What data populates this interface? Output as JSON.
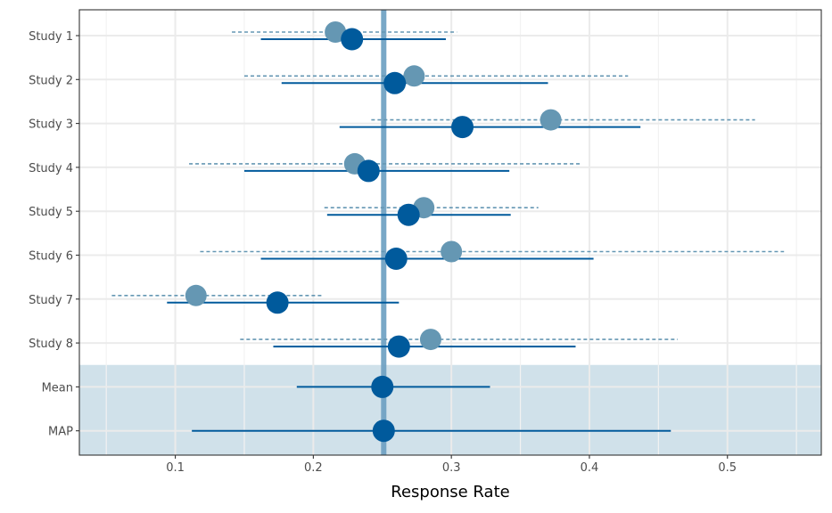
{
  "chart_data": {
    "type": "forest",
    "xlabel": "Response Rate",
    "ylabel": "",
    "xlim": [
      0.0305,
      0.568
    ],
    "xticks": [
      0.1,
      0.2,
      0.3,
      0.4,
      0.5
    ],
    "xtick_labels": [
      "0.1",
      "0.2",
      "0.3",
      "0.4",
      "0.5"
    ],
    "grid": true,
    "reference_line": {
      "x": 0.251,
      "color": "#6a9fc1"
    },
    "summary_shading_color": "#d0e1ea",
    "series": [
      {
        "style": "observed",
        "color": "#6597b3",
        "line": "dashed"
      },
      {
        "style": "shrunken",
        "color": "#005a9c",
        "line": "solid"
      }
    ],
    "rows": [
      {
        "label": "Study 1",
        "observed": {
          "est": 0.216,
          "lo": 0.141,
          "hi": 0.304
        },
        "shrunken": {
          "est": 0.228,
          "lo": 0.162,
          "hi": 0.296
        }
      },
      {
        "label": "Study 2",
        "observed": {
          "est": 0.273,
          "lo": 0.15,
          "hi": 0.428
        },
        "shrunken": {
          "est": 0.259,
          "lo": 0.177,
          "hi": 0.37
        }
      },
      {
        "label": "Study 3",
        "observed": {
          "est": 0.372,
          "lo": 0.242,
          "hi": 0.52
        },
        "shrunken": {
          "est": 0.308,
          "lo": 0.219,
          "hi": 0.437
        }
      },
      {
        "label": "Study 4",
        "observed": {
          "est": 0.23,
          "lo": 0.11,
          "hi": 0.394
        },
        "shrunken": {
          "est": 0.24,
          "lo": 0.15,
          "hi": 0.342
        }
      },
      {
        "label": "Study 5",
        "observed": {
          "est": 0.28,
          "lo": 0.208,
          "hi": 0.363
        },
        "shrunken": {
          "est": 0.269,
          "lo": 0.21,
          "hi": 0.343
        }
      },
      {
        "label": "Study 6",
        "observed": {
          "est": 0.3,
          "lo": 0.118,
          "hi": 0.541
        },
        "shrunken": {
          "est": 0.26,
          "lo": 0.162,
          "hi": 0.403
        }
      },
      {
        "label": "Study 7",
        "observed": {
          "est": 0.115,
          "lo": 0.054,
          "hi": 0.206
        },
        "shrunken": {
          "est": 0.174,
          "lo": 0.094,
          "hi": 0.262
        }
      },
      {
        "label": "Study 8",
        "observed": {
          "est": 0.285,
          "lo": 0.147,
          "hi": 0.464
        },
        "shrunken": {
          "est": 0.262,
          "lo": 0.171,
          "hi": 0.39
        }
      },
      {
        "label": "Mean",
        "summary": true,
        "shrunken": {
          "est": 0.25,
          "lo": 0.188,
          "hi": 0.328
        }
      },
      {
        "label": "MAP",
        "summary": true,
        "shrunken": {
          "est": 0.251,
          "lo": 0.112,
          "hi": 0.459
        }
      }
    ]
  }
}
